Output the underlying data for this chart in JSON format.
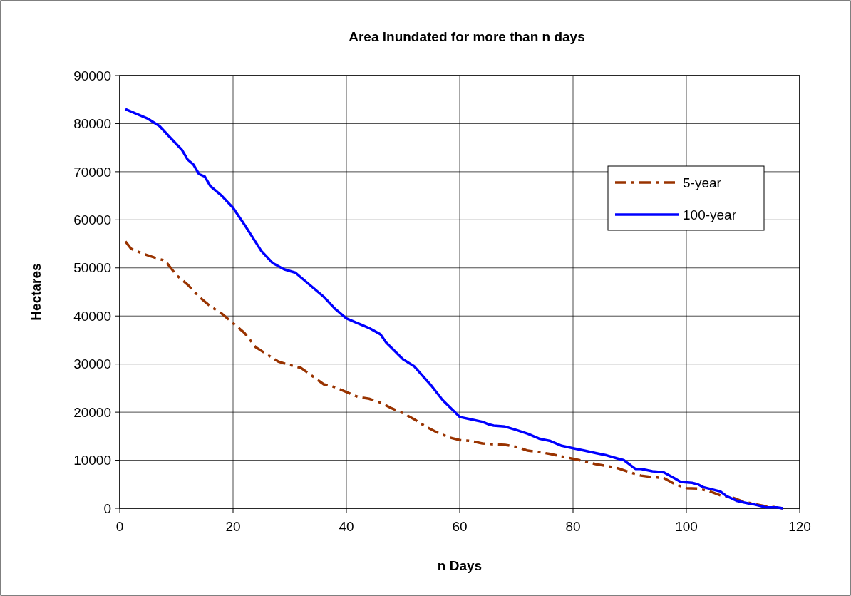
{
  "chart_data": {
    "type": "line",
    "title": "Area inundated for more than n days",
    "xlabel": "n Days",
    "ylabel": "Hectares",
    "xlim": [
      0,
      120
    ],
    "xticks": [
      0,
      20,
      40,
      60,
      80,
      100,
      120
    ],
    "ylim": [
      0,
      90000
    ],
    "yticks": [
      0,
      10000,
      20000,
      30000,
      40000,
      50000,
      60000,
      70000,
      80000,
      90000
    ],
    "grid": true,
    "legend": "right",
    "marker": "none",
    "series": [
      {
        "name": "5-year",
        "color": "#993300",
        "line_style": "dashed",
        "x": [
          1,
          2,
          4,
          6,
          8,
          10,
          12,
          14,
          16,
          18,
          20,
          22,
          24,
          26,
          28,
          30,
          32,
          34,
          36,
          38,
          40,
          42,
          44,
          46,
          48,
          50,
          52,
          54,
          56,
          58,
          60,
          62,
          64,
          66,
          68,
          70,
          72,
          74,
          76,
          78,
          80,
          82,
          84,
          86,
          88,
          90,
          92,
          94,
          96,
          98,
          100,
          102,
          104,
          106,
          108,
          110,
          112,
          114,
          116,
          117
        ],
        "values": [
          55500,
          54000,
          53000,
          52200,
          51500,
          48500,
          46500,
          44000,
          42000,
          40500,
          38500,
          36500,
          33500,
          32000,
          30500,
          29800,
          29200,
          27500,
          25800,
          25200,
          24200,
          23200,
          22800,
          22000,
          20800,
          19800,
          18500,
          17000,
          15800,
          14800,
          14200,
          14000,
          13500,
          13300,
          13200,
          12800,
          12000,
          11700,
          11300,
          10800,
          10300,
          9800,
          9200,
          8800,
          8300,
          7500,
          6800,
          6500,
          6300,
          5000,
          4200,
          4100,
          3600,
          2700,
          2300,
          1400,
          900,
          400,
          200,
          0
        ]
      },
      {
        "name": "100-year",
        "color": "#0000ff",
        "line_style": "solid",
        "x": [
          1,
          3,
          5,
          7,
          9,
          11,
          12,
          13,
          14,
          15,
          16,
          18,
          20,
          22,
          25,
          27,
          29,
          31,
          33,
          35,
          36,
          38,
          40,
          42,
          44,
          46,
          47,
          50,
          52,
          55,
          57,
          60,
          62,
          64,
          65,
          66,
          68,
          70,
          72,
          74,
          76,
          78,
          80,
          82,
          84,
          86,
          88,
          89,
          91,
          92,
          94,
          96,
          98,
          99,
          101,
          102,
          103,
          105,
          106,
          107,
          109,
          111,
          112,
          114,
          116,
          117
        ],
        "values": [
          83000,
          82000,
          81000,
          79500,
          77000,
          74500,
          72500,
          71500,
          69500,
          69000,
          67000,
          65000,
          62500,
          59000,
          53500,
          51000,
          49700,
          49000,
          47000,
          45000,
          44000,
          41500,
          39500,
          38500,
          37500,
          36200,
          34500,
          31000,
          29500,
          25500,
          22500,
          19000,
          18500,
          18000,
          17500,
          17200,
          17000,
          16300,
          15500,
          14500,
          14000,
          13000,
          12500,
          12000,
          11500,
          11000,
          10300,
          10000,
          8200,
          8200,
          7700,
          7500,
          6200,
          5500,
          5300,
          5000,
          4400,
          3800,
          3500,
          2600,
          1500,
          1000,
          800,
          200,
          200,
          0
        ]
      }
    ]
  }
}
